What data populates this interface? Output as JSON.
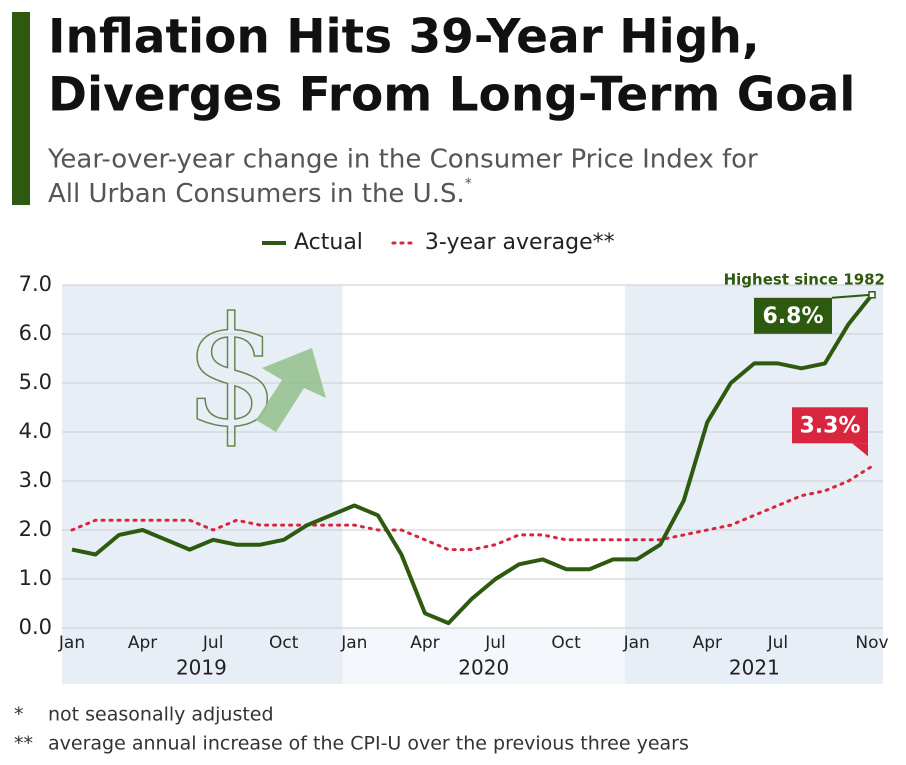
{
  "chart_data": {
    "type": "line",
    "title": [
      "Inflation Hits 39-Year High,",
      "Diverges From Long-Term Goal"
    ],
    "subtitle": [
      "Year-over-year change in the Consumer Price Index for",
      "All Urban Consumers in the U.S."
    ],
    "subtitle_mark": "*",
    "categories": [
      "Jan",
      null,
      null,
      "Apr",
      null,
      null,
      "Jul",
      null,
      null,
      "Oct",
      null,
      null,
      "Jan",
      null,
      null,
      "Apr",
      null,
      null,
      "Jul",
      null,
      null,
      "Oct",
      null,
      null,
      "Jan",
      null,
      null,
      "Apr",
      null,
      null,
      "Jul",
      null,
      null,
      null,
      "Nov"
    ],
    "years": [
      "2019",
      "2020",
      "2021"
    ],
    "series": [
      {
        "name": "Actual",
        "color": "#2d5a0e",
        "style": "solid",
        "values": [
          1.6,
          1.5,
          1.9,
          2.0,
          1.8,
          1.6,
          1.8,
          1.7,
          1.7,
          1.8,
          2.1,
          2.3,
          2.5,
          2.3,
          1.5,
          0.3,
          0.1,
          0.6,
          1.0,
          1.3,
          1.4,
          1.2,
          1.2,
          1.4,
          1.4,
          1.7,
          2.6,
          4.2,
          5.0,
          5.4,
          5.4,
          5.3,
          5.4,
          6.2,
          6.8
        ],
        "value_labels": [
          null,
          null,
          null,
          null,
          null,
          null,
          null,
          null,
          null,
          null,
          null,
          null,
          null,
          null,
          null,
          null,
          null,
          null,
          null,
          null,
          null,
          null,
          null,
          null,
          null,
          null,
          null,
          null,
          null,
          null,
          null,
          null,
          null,
          null,
          "6.8%"
        ]
      },
      {
        "name": "3-year average**",
        "color": "#d7263d",
        "style": "dotted",
        "values": [
          2.0,
          2.2,
          2.2,
          2.2,
          2.2,
          2.2,
          2.0,
          2.2,
          2.1,
          2.1,
          2.1,
          2.1,
          2.1,
          2.0,
          2.0,
          1.8,
          1.6,
          1.6,
          1.7,
          1.9,
          1.9,
          1.8,
          1.8,
          1.8,
          1.8,
          1.8,
          1.9,
          2.0,
          2.1,
          2.3,
          2.5,
          2.7,
          2.8,
          3.0,
          3.3
        ],
        "value_labels": [
          null,
          null,
          null,
          null,
          null,
          null,
          null,
          null,
          null,
          null,
          null,
          null,
          null,
          null,
          null,
          null,
          null,
          null,
          null,
          null,
          null,
          null,
          null,
          null,
          null,
          null,
          null,
          null,
          null,
          null,
          null,
          null,
          null,
          null,
          "3.3%"
        ]
      }
    ],
    "annotation": "Highest since 1982",
    "ylim": [
      0,
      7
    ],
    "yticks": [
      {
        "value": 0,
        "label": "0.0"
      },
      {
        "value": 1,
        "label": "1.0"
      },
      {
        "value": 2,
        "label": "2.0"
      },
      {
        "value": 3,
        "label": "3.0"
      },
      {
        "value": 4,
        "label": "4.0"
      },
      {
        "value": 5,
        "label": "5.0"
      },
      {
        "value": 6,
        "label": "6.0"
      },
      {
        "value": 7,
        "label": "7.0"
      }
    ],
    "grid": true,
    "footnotes": [
      {
        "mark": "*",
        "text": "not seasonally adjusted"
      },
      {
        "mark": "**",
        "text": "average annual increase of the CPI-U over the previous three years"
      }
    ]
  }
}
